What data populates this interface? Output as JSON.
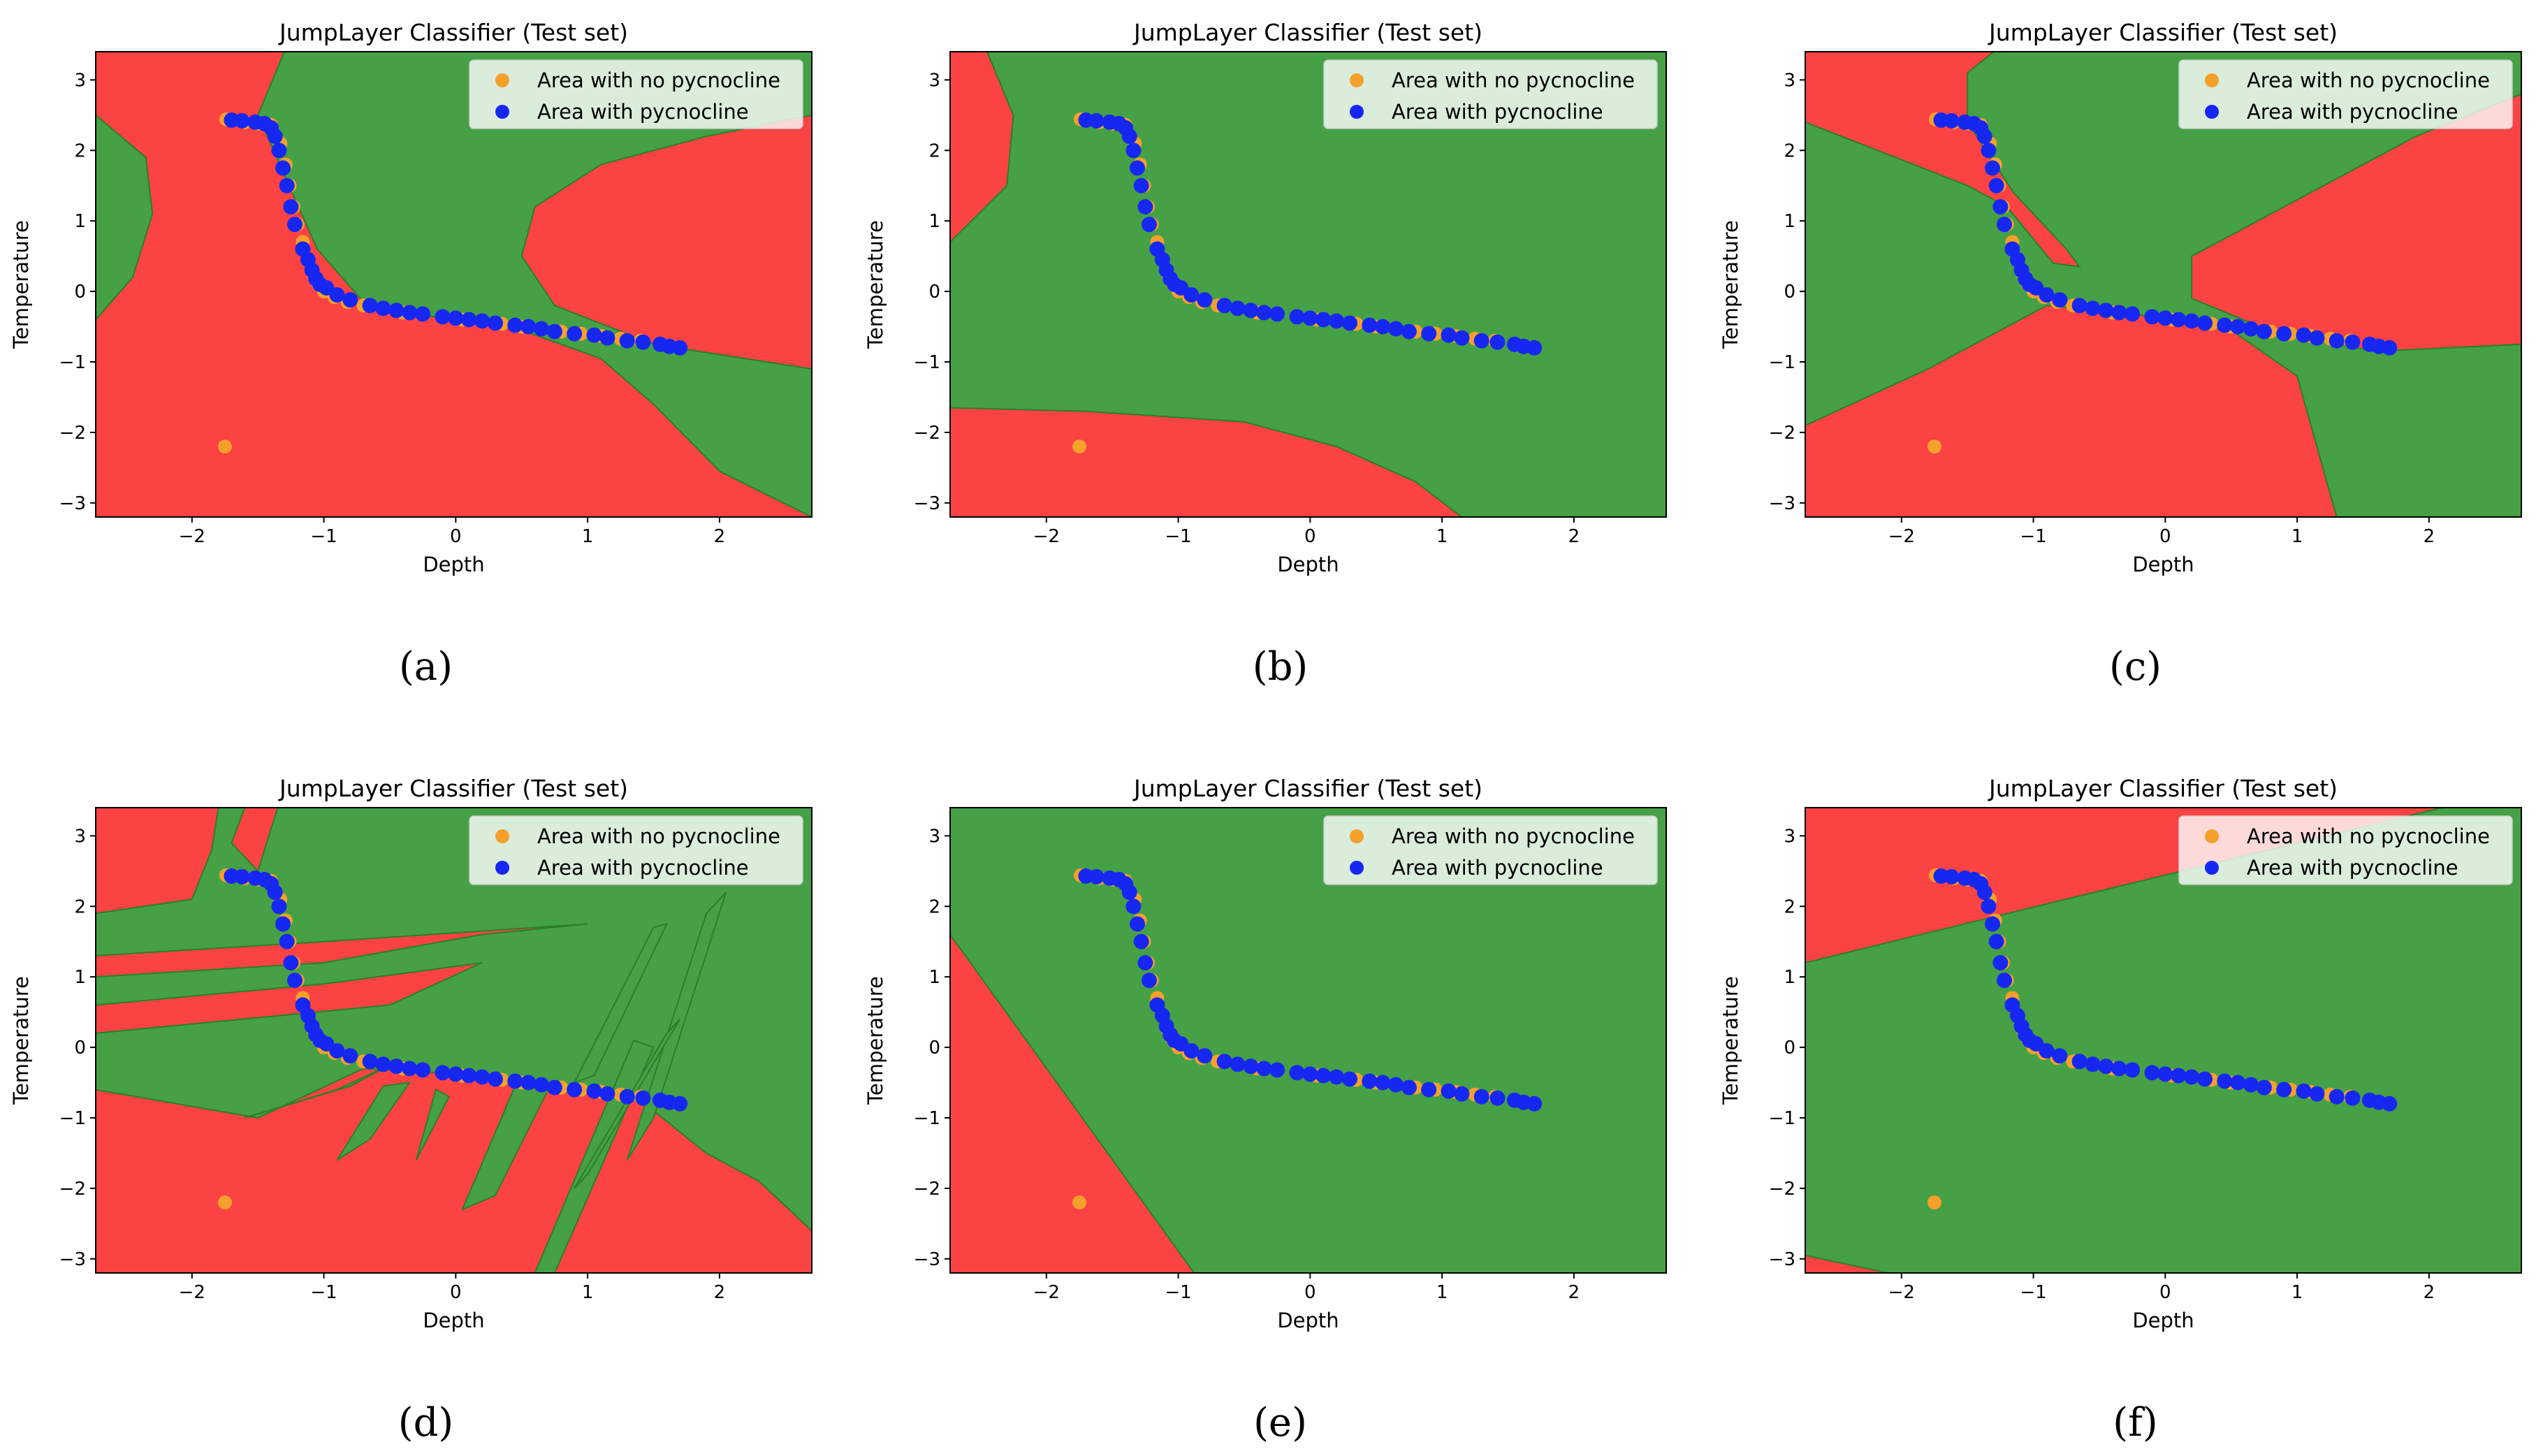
{
  "chart_data": [
    {
      "id": "a",
      "type": "scatter",
      "title": "JumpLayer Classifier (Test set)",
      "xlabel": "Depth",
      "ylabel": "Temperature",
      "panel_label": "(a)",
      "xlim": [
        -2.73,
        2.7
      ],
      "ylim": [
        -3.2,
        3.4
      ],
      "xticks": [
        -2,
        -1,
        0,
        1,
        2
      ],
      "yticks": [
        -3,
        -2,
        -1,
        0,
        1,
        2,
        3
      ],
      "background": "green",
      "regions": [
        [
          [
            -2.73,
            3.4
          ],
          [
            -1.3,
            3.4
          ],
          [
            -1.5,
            2.5
          ],
          [
            -1.05,
            0.6
          ],
          [
            -0.7,
            -0.15
          ],
          [
            -0.2,
            -0.35
          ],
          [
            0.5,
            -0.55
          ],
          [
            1.1,
            -0.95
          ],
          [
            1.5,
            -1.6
          ],
          [
            2.0,
            -2.55
          ],
          [
            2.7,
            -3.2
          ],
          [
            -2.73,
            -3.2
          ]
        ],
        [
          [
            2.7,
            2.5
          ],
          [
            1.9,
            2.2
          ],
          [
            1.1,
            1.8
          ],
          [
            0.6,
            1.2
          ],
          [
            0.5,
            0.5
          ],
          [
            0.75,
            -0.2
          ],
          [
            1.5,
            -0.75
          ],
          [
            2.7,
            -1.1
          ]
        ]
      ],
      "green_islands": [
        [
          [
            -2.73,
            2.5
          ],
          [
            -2.35,
            1.9
          ],
          [
            -2.3,
            1.1
          ],
          [
            -2.45,
            0.2
          ],
          [
            -2.73,
            -0.4
          ]
        ]
      ],
      "legend": [
        "Area with no pycnocline",
        "Area with pycnocline"
      ]
    },
    {
      "id": "b",
      "type": "scatter",
      "title": "JumpLayer Classifier (Test set)",
      "xlabel": "Depth",
      "ylabel": "Temperature",
      "panel_label": "(b)",
      "xlim": [
        -2.73,
        2.7
      ],
      "ylim": [
        -3.2,
        3.4
      ],
      "xticks": [
        -2,
        -1,
        0,
        1,
        2
      ],
      "yticks": [
        -3,
        -2,
        -1,
        0,
        1,
        2,
        3
      ],
      "background": "green",
      "regions": [
        [
          [
            -2.73,
            3.4
          ],
          [
            -2.45,
            3.4
          ],
          [
            -2.25,
            2.5
          ],
          [
            -2.3,
            1.5
          ],
          [
            -2.73,
            0.7
          ]
        ],
        [
          [
            -2.73,
            -1.65
          ],
          [
            -1.7,
            -1.7
          ],
          [
            -0.5,
            -1.85
          ],
          [
            0.2,
            -2.2
          ],
          [
            0.8,
            -2.7
          ],
          [
            1.15,
            -3.2
          ],
          [
            -2.73,
            -3.2
          ]
        ]
      ],
      "green_islands": [],
      "legend": [
        "Area with no pycnocline",
        "Area with pycnocline"
      ]
    },
    {
      "id": "c",
      "type": "scatter",
      "title": "JumpLayer Classifier (Test set)",
      "xlabel": "Depth",
      "ylabel": "Temperature",
      "panel_label": "(c)",
      "xlim": [
        -2.73,
        2.7
      ],
      "ylim": [
        -3.2,
        3.4
      ],
      "xticks": [
        -2,
        -1,
        0,
        1,
        2
      ],
      "yticks": [
        -3,
        -2,
        -1,
        0,
        1,
        2,
        3
      ],
      "background": "green",
      "regions": [
        [
          [
            -2.73,
            3.4
          ],
          [
            -1.3,
            3.4
          ],
          [
            -1.5,
            3.1
          ],
          [
            -1.5,
            2.4
          ],
          [
            -1.15,
            1.4
          ],
          [
            -0.75,
            0.6
          ],
          [
            -0.65,
            0.35
          ],
          [
            -0.85,
            0.4
          ],
          [
            -1.2,
            1.2
          ],
          [
            -1.5,
            1.5
          ],
          [
            -2.73,
            2.4
          ]
        ],
        [
          [
            -2.73,
            -1.9
          ],
          [
            -1.8,
            -1.1
          ],
          [
            -0.9,
            -0.2
          ],
          [
            -0.3,
            -0.3
          ],
          [
            0.5,
            -0.55
          ],
          [
            1.0,
            -1.2
          ],
          [
            1.3,
            -3.2
          ],
          [
            -2.73,
            -3.2
          ]
        ],
        [
          [
            2.7,
            2.8
          ],
          [
            1.9,
            2.2
          ],
          [
            0.9,
            1.2
          ],
          [
            0.2,
            0.5
          ],
          [
            0.2,
            -0.1
          ],
          [
            0.85,
            -0.6
          ],
          [
            1.6,
            -0.85
          ],
          [
            2.7,
            -0.75
          ]
        ]
      ],
      "green_islands": [],
      "legend": [
        "Area with no pycnocline",
        "Area with pycnocline"
      ]
    },
    {
      "id": "d",
      "type": "scatter",
      "title": "JumpLayer Classifier (Test set)",
      "xlabel": "Depth",
      "ylabel": "Temperature",
      "panel_label": "(d)",
      "xlim": [
        -2.73,
        2.7
      ],
      "ylim": [
        -3.2,
        3.4
      ],
      "xticks": [
        -2,
        -1,
        0,
        1,
        2
      ],
      "yticks": [
        -3,
        -2,
        -1,
        0,
        1,
        2,
        3
      ],
      "background": "green",
      "regions": [
        [
          [
            -2.73,
            3.4
          ],
          [
            -1.8,
            3.4
          ],
          [
            -1.85,
            2.8
          ],
          [
            -2.0,
            2.1
          ],
          [
            -2.73,
            1.9
          ]
        ],
        [
          [
            -1.6,
            3.4
          ],
          [
            -1.7,
            2.9
          ],
          [
            -1.5,
            2.5
          ],
          [
            -1.35,
            3.4
          ]
        ],
        [
          [
            -2.73,
            1.3
          ],
          [
            -1.0,
            1.5
          ],
          [
            1.0,
            1.75
          ],
          [
            0.2,
            1.6
          ],
          [
            -1.0,
            1.2
          ],
          [
            -2.73,
            1.0
          ]
        ],
        [
          [
            -2.73,
            0.6
          ],
          [
            -1.0,
            0.9
          ],
          [
            0.2,
            1.2
          ],
          [
            -0.5,
            0.6
          ],
          [
            -2.73,
            0.2
          ]
        ],
        [
          [
            -2.73,
            -0.6
          ],
          [
            -1.5,
            -1.0
          ],
          [
            -0.7,
            -0.3
          ],
          [
            -0.2,
            -0.35
          ],
          [
            0.5,
            -0.55
          ],
          [
            0.9,
            -0.65
          ],
          [
            1.3,
            -0.7
          ],
          [
            1.5,
            -0.9
          ],
          [
            1.9,
            -1.5
          ],
          [
            2.3,
            -1.9
          ],
          [
            2.7,
            -2.6
          ],
          [
            2.7,
            -3.2
          ],
          [
            -2.73,
            -3.2
          ]
        ]
      ],
      "green_islands": [
        [
          [
            -1.6,
            -1.0
          ],
          [
            -0.9,
            -0.6
          ],
          [
            -0.5,
            -0.25
          ],
          [
            -0.8,
            -0.55
          ]
        ],
        [
          [
            -0.9,
            -1.6
          ],
          [
            -0.55,
            -0.55
          ],
          [
            -0.35,
            -0.5
          ],
          [
            -0.65,
            -1.3
          ]
        ],
        [
          [
            -0.3,
            -1.6
          ],
          [
            -0.15,
            -0.6
          ],
          [
            -0.05,
            -0.7
          ]
        ],
        [
          [
            0.05,
            -2.3
          ],
          [
            0.45,
            -0.55
          ],
          [
            0.7,
            -0.6
          ],
          [
            0.3,
            -2.1
          ]
        ],
        [
          [
            0.6,
            -3.2
          ],
          [
            1.35,
            0.1
          ],
          [
            1.5,
            0.0
          ],
          [
            0.75,
            -3.2
          ]
        ],
        [
          [
            1.3,
            -1.6
          ],
          [
            1.9,
            1.9
          ],
          [
            2.05,
            2.2
          ],
          [
            1.5,
            -1.0
          ]
        ],
        [
          [
            0.9,
            -0.5
          ],
          [
            1.5,
            1.7
          ],
          [
            1.6,
            1.75
          ],
          [
            1.05,
            -0.4
          ]
        ],
        [
          [
            0.9,
            -2.0
          ],
          [
            1.6,
            0.2
          ],
          [
            1.7,
            0.4
          ],
          [
            1.0,
            -1.8
          ]
        ]
      ],
      "legend": [
        "Area with no pycnocline",
        "Area with pycnocline"
      ]
    },
    {
      "id": "e",
      "type": "scatter",
      "title": "JumpLayer Classifier (Test set)",
      "xlabel": "Depth",
      "ylabel": "Temperature",
      "panel_label": "(e)",
      "xlim": [
        -2.73,
        2.7
      ],
      "ylim": [
        -3.2,
        3.4
      ],
      "xticks": [
        -2,
        -1,
        0,
        1,
        2
      ],
      "yticks": [
        -3,
        -2,
        -1,
        0,
        1,
        2,
        3
      ],
      "background": "green",
      "regions": [
        [
          [
            -2.73,
            1.6
          ],
          [
            -0.88,
            -3.2
          ],
          [
            -2.73,
            -3.2
          ]
        ]
      ],
      "green_islands": [],
      "legend": [
        "Area with no pycnocline",
        "Area with pycnocline"
      ]
    },
    {
      "id": "f",
      "type": "scatter",
      "title": "JumpLayer Classifier (Test set)",
      "xlabel": "Depth",
      "ylabel": "Temperature",
      "panel_label": "(f)",
      "xlim": [
        -2.73,
        2.7
      ],
      "ylim": [
        -3.2,
        3.4
      ],
      "xticks": [
        -2,
        -1,
        0,
        1,
        2
      ],
      "yticks": [
        -3,
        -2,
        -1,
        0,
        1,
        2,
        3
      ],
      "background": "green",
      "regions": [
        [
          [
            -2.73,
            3.4
          ],
          [
            2.1,
            3.4
          ],
          [
            -2.73,
            1.2
          ]
        ],
        [
          [
            -2.73,
            -2.95
          ],
          [
            -2.1,
            -3.2
          ],
          [
            -2.73,
            -3.2
          ]
        ]
      ],
      "green_islands": [],
      "legend": [
        "Area with no pycnocline",
        "Area with pycnocline"
      ]
    }
  ],
  "series": [
    {
      "name": "Area with no pycnocline",
      "color": "#f5a02a",
      "x": [
        -1.75,
        -1.74,
        -1.7,
        -1.6,
        -1.5,
        -1.4,
        -1.33,
        -1.29,
        -1.26,
        -1.23,
        -1.2,
        -1.16,
        -1.12,
        -1.08,
        -1.04,
        -1.0,
        -0.92,
        -0.82,
        -0.7,
        -0.55,
        -0.4,
        -0.25,
        -0.1,
        0.05,
        0.2,
        0.35,
        0.5,
        0.65,
        0.8,
        0.95,
        1.1,
        1.25,
        1.4,
        1.55,
        1.7
      ],
      "y": [
        -2.2,
        2.44,
        2.44,
        2.4,
        2.38,
        2.36,
        2.1,
        1.8,
        1.5,
        1.2,
        0.95,
        0.7,
        0.45,
        0.25,
        0.1,
        0.0,
        -0.08,
        -0.15,
        -0.2,
        -0.25,
        -0.3,
        -0.33,
        -0.37,
        -0.4,
        -0.43,
        -0.46,
        -0.5,
        -0.53,
        -0.57,
        -0.6,
        -0.63,
        -0.67,
        -0.7,
        -0.75,
        -0.8
      ]
    },
    {
      "name": "Area with pycnocline",
      "color": "#1727f2",
      "x": [
        -1.7,
        -1.62,
        -1.52,
        -1.45,
        -1.4,
        -1.37,
        -1.34,
        -1.31,
        -1.28,
        -1.25,
        -1.22,
        -1.16,
        -1.12,
        -1.09,
        -1.06,
        -1.03,
        -0.98,
        -0.9,
        -0.8,
        -0.65,
        -0.55,
        -0.45,
        -0.35,
        -0.25,
        -0.1,
        0.0,
        0.1,
        0.2,
        0.3,
        0.45,
        0.55,
        0.65,
        0.75,
        0.9,
        1.05,
        1.15,
        1.3,
        1.42,
        1.55,
        1.62,
        1.7
      ],
      "y": [
        2.43,
        2.42,
        2.4,
        2.38,
        2.32,
        2.2,
        2.0,
        1.75,
        1.5,
        1.2,
        0.95,
        0.6,
        0.45,
        0.3,
        0.18,
        0.1,
        0.05,
        -0.05,
        -0.12,
        -0.2,
        -0.24,
        -0.27,
        -0.3,
        -0.32,
        -0.36,
        -0.38,
        -0.4,
        -0.42,
        -0.45,
        -0.48,
        -0.5,
        -0.53,
        -0.57,
        -0.6,
        -0.62,
        -0.66,
        -0.7,
        -0.72,
        -0.75,
        -0.78,
        -0.8
      ]
    }
  ],
  "colors": {
    "red_region": "#fb4343",
    "green_region": "#46a046",
    "boundary": "#2a7f2a",
    "legend_bg": "#ffffff"
  }
}
